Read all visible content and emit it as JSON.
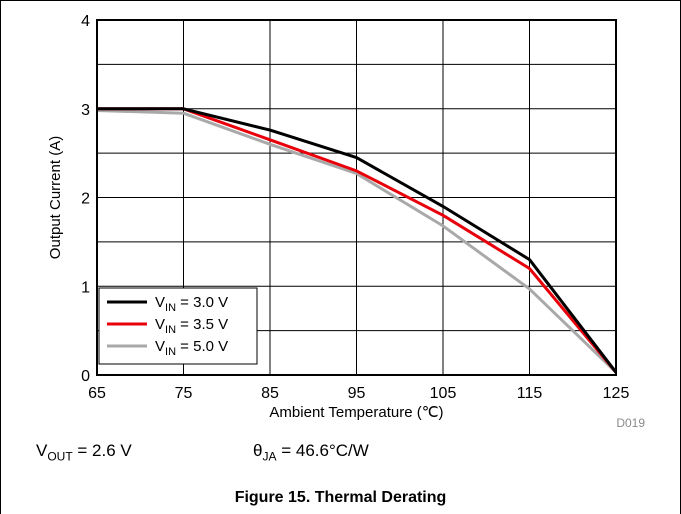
{
  "chart_data": {
    "type": "line",
    "xlabel": "Ambient Temperature (℃)",
    "ylabel": "Output Current (A)",
    "xlim": [
      65,
      125
    ],
    "ylim": [
      0,
      4
    ],
    "xticks": [
      "65",
      "75",
      "85",
      "95",
      "105",
      "115",
      "125"
    ],
    "yticks": [
      "0",
      "1",
      "2",
      "3",
      "4"
    ],
    "grid": true,
    "legend_position": "bottom-left",
    "series": [
      {
        "name_main": "V",
        "name_sub": "IN",
        "name_rest": " = 3.0 V",
        "color": "#000000",
        "x": [
          65,
          75,
          85,
          95,
          105,
          115,
          125
        ],
        "y": [
          3.0,
          3.0,
          2.76,
          2.45,
          1.9,
          1.3,
          0.03
        ]
      },
      {
        "name_main": "V",
        "name_sub": "IN",
        "name_rest": " = 3.5 V",
        "color": "#e8000b",
        "x": [
          65,
          75,
          85,
          95,
          105,
          115,
          125
        ],
        "y": [
          3.0,
          3.0,
          2.65,
          2.3,
          1.8,
          1.2,
          0.03
        ]
      },
      {
        "name_main": "V",
        "name_sub": "IN",
        "name_rest": " = 5.0 V",
        "color": "#a9a9a9",
        "x": [
          65,
          75,
          85,
          95,
          105,
          115,
          125
        ],
        "y": [
          2.98,
          2.95,
          2.6,
          2.27,
          1.68,
          0.97,
          0.03
        ]
      }
    ],
    "code": "D019"
  },
  "conditions": {
    "vout_main": "V",
    "vout_sub": "OUT",
    "vout_rest": " = 2.6 V",
    "theta_main": "θ",
    "theta_sub": "JA",
    "theta_rest": " = 46.6°C/W"
  },
  "caption": "Figure 15. Thermal Derating"
}
